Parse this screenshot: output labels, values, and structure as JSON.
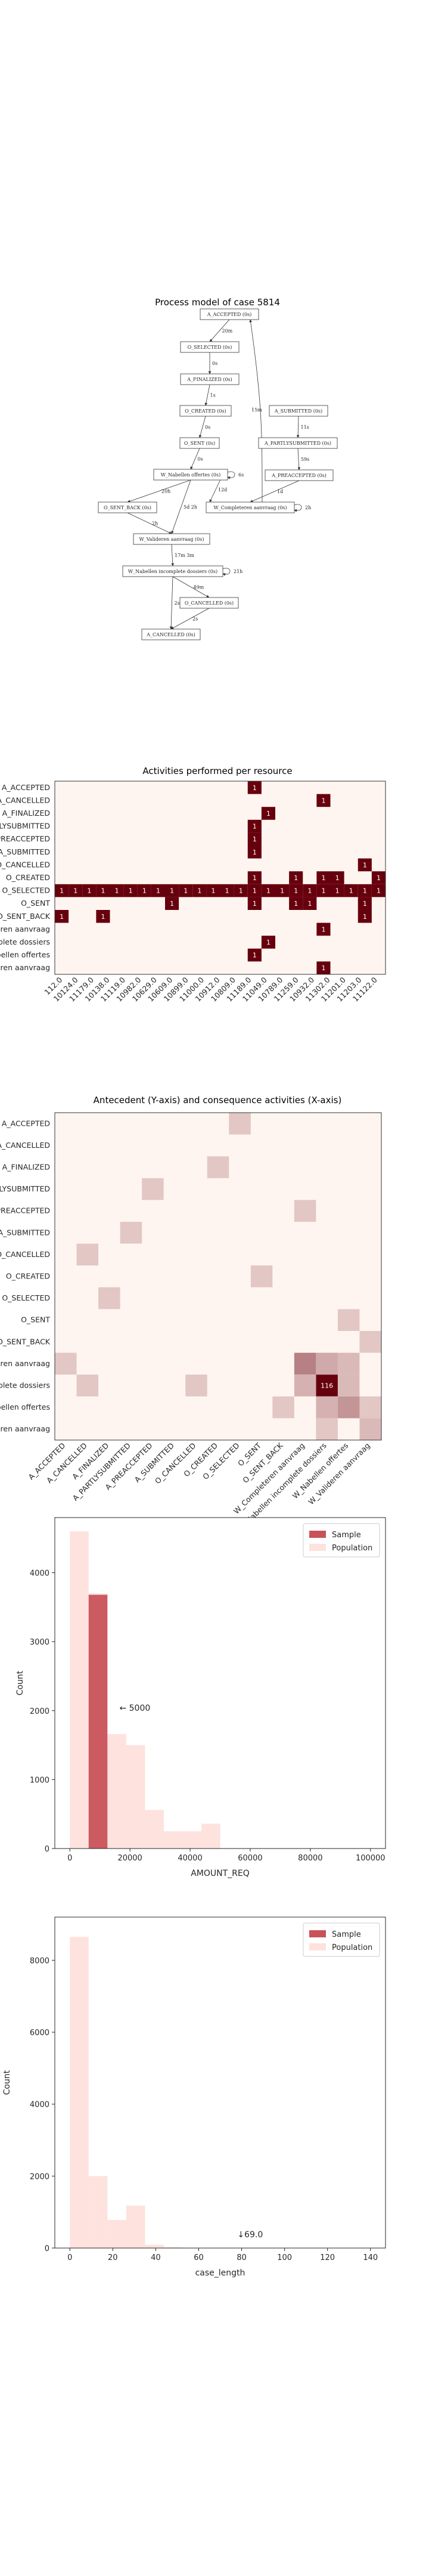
{
  "process_model": {
    "title": "Process model of case 5814",
    "nodes": [
      {
        "id": "a_accepted",
        "label": "A_ACCEPTED (0s)"
      },
      {
        "id": "o_selected",
        "label": "O_SELECTED (0s)"
      },
      {
        "id": "a_finalized",
        "label": "A_FINALIZED (0s)"
      },
      {
        "id": "o_created",
        "label": "O_CREATED (0s)"
      },
      {
        "id": "o_sent",
        "label": "O_SENT (0s)"
      },
      {
        "id": "w_nabellen",
        "label": "W_Nabellen offertes (0s)"
      },
      {
        "id": "o_sent_back",
        "label": "O_SENT_BACK (0s)"
      },
      {
        "id": "w_valideren",
        "label": "W_Valideren aanvraag (0s)"
      },
      {
        "id": "w_nabellen_incompleet",
        "label": "W_Nabellen incomplete dossiers (0s)"
      },
      {
        "id": "o_cancelled",
        "label": "O_CANCELLED (0s)"
      },
      {
        "id": "a_cancelled",
        "label": "A_CANCELLED (0s)"
      },
      {
        "id": "a_submitted",
        "label": "A_SUBMITTED (0s)"
      },
      {
        "id": "a_partlysubmitted",
        "label": "A_PARTLYSUBMITTED (0s)"
      },
      {
        "id": "a_preaccepted",
        "label": "A_PREACCEPTED (0s)"
      },
      {
        "id": "w_completeren",
        "label": "W_Completeren aanvraag (0s)"
      }
    ],
    "edges": [
      {
        "from": "a_accepted",
        "to": "o_selected",
        "label": "20m"
      },
      {
        "from": "o_selected",
        "to": "a_finalized",
        "label": "0s"
      },
      {
        "from": "a_finalized",
        "to": "o_created",
        "label": "1s"
      },
      {
        "from": "o_created",
        "to": "o_sent",
        "label": "0s"
      },
      {
        "from": "o_sent",
        "to": "w_nabellen",
        "label": "0s"
      },
      {
        "from": "w_nabellen",
        "to": "o_sent_back",
        "label": "20h"
      },
      {
        "from": "w_nabellen",
        "to": "w_valideren",
        "label": "5d 2h"
      },
      {
        "from": "w_nabellen",
        "to": "w_completeren",
        "label": "12d"
      },
      {
        "from": "o_sent_back",
        "to": "w_valideren",
        "label": "2h"
      },
      {
        "from": "w_valideren",
        "to": "w_nabellen_incompleet",
        "label": "17m 3m"
      },
      {
        "from": "w_nabellen_incompleet",
        "to": "o_cancelled",
        "label": "49m"
      },
      {
        "from": "o_cancelled",
        "to": "a_cancelled",
        "label": "2s"
      },
      {
        "from": "w_nabellen_incompleet",
        "to": "a_cancelled",
        "label": "2s"
      },
      {
        "from": "a_submitted",
        "to": "a_partlysubmitted",
        "label": "11s"
      },
      {
        "from": "a_partlysubmitted",
        "to": "a_preaccepted",
        "label": "59s"
      },
      {
        "from": "a_preaccepted",
        "to": "w_completeren",
        "label": "1d"
      },
      {
        "from": "w_completeren",
        "to": "a_accepted",
        "label": "15m"
      },
      {
        "from": "w_nabellen",
        "to": "w_nabellen",
        "label": "6s"
      },
      {
        "from": "w_completeren",
        "to": "w_completeren",
        "label": "2h"
      },
      {
        "from": "w_nabellen_incompleet",
        "to": "w_nabellen_incompleet",
        "label": "21h"
      }
    ]
  },
  "chart_data": [
    {
      "type": "heatmap",
      "title": "Activities performed per resource",
      "y_categories": [
        "A_ACCEPTED",
        "A_CANCELLED",
        "A_FINALIZED",
        "A_PARTLYSUBMITTED",
        "A_PREACCEPTED",
        "A_SUBMITTED",
        "O_CANCELLED",
        "O_CREATED",
        "O_SELECTED",
        "O_SENT",
        "O_SENT_BACK",
        "W_Completeren aanvraag",
        "W_Nabellen incomplete dossiers",
        "W_Nabellen offertes",
        "W_Valideren aanvraag"
      ],
      "x_categories": [
        "112.0",
        "10124.0",
        "11179.0",
        "10138.0",
        "11119.0",
        "10982.0",
        "10629.0",
        "10609.0",
        "10899.0",
        "11000.0",
        "10912.0",
        "10809.0",
        "11189.0",
        "11049.0",
        "10789.0",
        "11259.0",
        "10932.0",
        "11302.0",
        "11201.0",
        "11203.0",
        "11122.0"
      ],
      "cells": [
        [
          0,
          14,
          1
        ],
        [
          1,
          19,
          1
        ],
        [
          2,
          15,
          1
        ],
        [
          3,
          14,
          1
        ],
        [
          4,
          14,
          1
        ],
        [
          5,
          14,
          1
        ],
        [
          6,
          22,
          1
        ],
        [
          7,
          14,
          1
        ],
        [
          7,
          17,
          1
        ],
        [
          7,
          19,
          1
        ],
        [
          7,
          20,
          1
        ],
        [
          7,
          23,
          1
        ],
        [
          8,
          0,
          1
        ],
        [
          8,
          1,
          1
        ],
        [
          8,
          2,
          1
        ],
        [
          8,
          3,
          1
        ],
        [
          8,
          4,
          1
        ],
        [
          8,
          5,
          1
        ],
        [
          8,
          6,
          1
        ],
        [
          8,
          7,
          1
        ],
        [
          8,
          8,
          1
        ],
        [
          8,
          9,
          1
        ],
        [
          8,
          10,
          1
        ],
        [
          8,
          11,
          1
        ],
        [
          8,
          12,
          1
        ],
        [
          8,
          13,
          1
        ],
        [
          8,
          14,
          1
        ],
        [
          8,
          15,
          1
        ],
        [
          8,
          16,
          1
        ],
        [
          8,
          17,
          1
        ],
        [
          8,
          18,
          1
        ],
        [
          8,
          19,
          1
        ],
        [
          8,
          20,
          1
        ],
        [
          8,
          21,
          1
        ],
        [
          8,
          22,
          1
        ],
        [
          8,
          23,
          1
        ],
        [
          9,
          8,
          1
        ],
        [
          9,
          14,
          1
        ],
        [
          9,
          17,
          1
        ],
        [
          9,
          18,
          1
        ],
        [
          9,
          22,
          1
        ],
        [
          10,
          0,
          1
        ],
        [
          10,
          3,
          1
        ],
        [
          10,
          22,
          1
        ],
        [
          11,
          19,
          1
        ],
        [
          12,
          15,
          1
        ],
        [
          13,
          14,
          1
        ],
        [
          14,
          19,
          1
        ]
      ]
    },
    {
      "type": "heatmap",
      "title": "Antecedent (Y-axis) and consequence activities (X-axis)",
      "y_categories": [
        "A_ACCEPTED",
        "A_CANCELLED",
        "A_FINALIZED",
        "A_PARTLYSUBMITTED",
        "A_PREACCEPTED",
        "A_SUBMITTED",
        "O_CANCELLED",
        "O_CREATED",
        "O_SELECTED",
        "O_SENT",
        "O_SENT_BACK",
        "W_Completeren aanvraag",
        "W_Nabellen incomplete dossiers",
        "W_Nabellen offertes",
        "W_Valideren aanvraag"
      ],
      "x_categories": [
        "A_ACCEPTED",
        "A_CANCELLED",
        "A_FINALIZED",
        "A_PARTLYSUBMITTED",
        "A_PREACCEPTED",
        "A_SUBMITTED",
        "O_CANCELLED",
        "O_CREATED",
        "O_SELECTED",
        "O_SENT",
        "O_SENT_BACK",
        "W_Completeren aanvraag",
        "W_Nabellen incomplete dossiers",
        "W_Nabellen offertes",
        "W_Valideren aanvraag"
      ],
      "max": 116,
      "cells": [
        [
          12,
          12,
          116
        ],
        [
          11,
          11,
          14
        ],
        [
          13,
          13,
          8
        ],
        [
          11,
          12,
          4
        ],
        [
          12,
          11,
          3
        ],
        [
          13,
          12,
          3
        ],
        [
          12,
          13,
          2
        ],
        [
          11,
          13,
          2
        ],
        [
          14,
          14,
          2
        ],
        [
          0,
          8,
          1
        ],
        [
          8,
          2,
          1
        ],
        [
          2,
          7,
          1
        ],
        [
          7,
          9,
          1
        ],
        [
          9,
          13,
          1
        ],
        [
          13,
          10,
          1
        ],
        [
          10,
          14,
          1
        ],
        [
          14,
          12,
          1
        ],
        [
          12,
          6,
          1
        ],
        [
          6,
          1,
          1
        ],
        [
          5,
          3,
          1
        ],
        [
          3,
          4,
          1
        ],
        [
          4,
          11,
          1
        ],
        [
          11,
          0,
          1
        ],
        [
          13,
          14,
          1
        ],
        [
          12,
          1,
          1
        ]
      ]
    },
    {
      "type": "bar",
      "xlabel": "AMOUNT_REQ",
      "ylabel": "Count",
      "xlim": [
        -5000,
        105000
      ],
      "ylim": [
        0,
        4800
      ],
      "x_ticks": [
        "0",
        "20000",
        "40000",
        "60000",
        "80000",
        "100000"
      ],
      "y_ticks": [
        "0",
        "1000",
        "2000",
        "3000",
        "4000"
      ],
      "legend_position": "top-right",
      "bin_width": 6250,
      "bin_starts": [
        0,
        6250,
        12500,
        18750,
        25000,
        31250,
        37500,
        43750,
        50000
      ],
      "series": [
        {
          "name": "Sample",
          "color": "#c9525a",
          "values": [
            0,
            3680,
            0,
            0,
            0,
            0,
            0,
            0,
            0
          ]
        },
        {
          "name": "Population",
          "color": "#fde2de",
          "values": [
            4600,
            3700,
            1660,
            1500,
            560,
            250,
            250,
            360,
            0
          ]
        }
      ],
      "annotation": {
        "text": "← 5000",
        "x": 16500,
        "y": 2000
      }
    },
    {
      "type": "bar",
      "xlabel": "case_length",
      "ylabel": "Count",
      "xlim": [
        -7,
        147
      ],
      "ylim": [
        0,
        9200
      ],
      "x_ticks": [
        "0",
        "20",
        "40",
        "60",
        "80",
        "100",
        "120",
        "140"
      ],
      "y_ticks": [
        "0",
        "2000",
        "4000",
        "6000",
        "8000"
      ],
      "legend_position": "top-right",
      "bin_width": 8.75,
      "bin_starts": [
        0,
        8.75,
        17.5,
        26.25,
        35,
        43.75
      ],
      "series": [
        {
          "name": "Sample",
          "color": "#c9525a",
          "values": [
            0,
            0,
            0,
            0,
            0,
            0
          ]
        },
        {
          "name": "Population",
          "color": "#fde2de",
          "values": [
            8650,
            2000,
            780,
            1180,
            90,
            20
          ]
        }
      ],
      "annotation": {
        "text": "↓69.0",
        "x": 78,
        "y": 300
      }
    }
  ]
}
